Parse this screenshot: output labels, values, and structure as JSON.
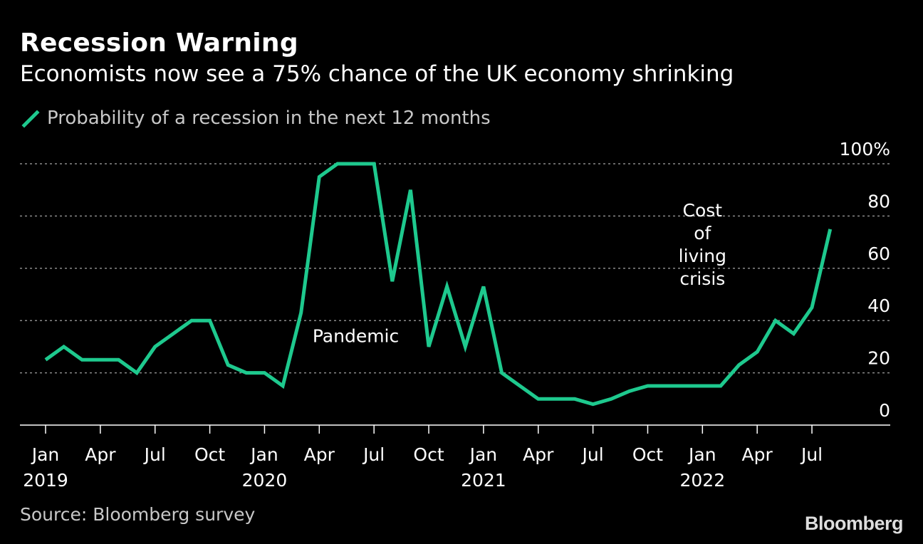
{
  "title": "Recession Warning",
  "subtitle": "Economists now see a 75% chance of the UK economy shrinking",
  "legend": {
    "label": "Probability of a recession in the next 12 months",
    "color": "#1ec98e"
  },
  "source": "Source: Bloomberg survey",
  "brand": "Bloomberg",
  "chart_data": {
    "type": "line",
    "title": "Recession Warning",
    "subtitle": "Economists now see a 75% chance of the UK economy shrinking",
    "ylim": [
      0,
      100
    ],
    "yticks": [
      {
        "value": 100,
        "label": "100%"
      },
      {
        "value": 80,
        "label": "80"
      },
      {
        "value": 60,
        "label": "60"
      },
      {
        "value": 40,
        "label": "40"
      },
      {
        "value": 20,
        "label": "20"
      },
      {
        "value": 0,
        "label": "0"
      }
    ],
    "xlim": [
      "2018-12",
      "2022-12"
    ],
    "xticks": [
      {
        "date": "2019-01",
        "label": "Jan",
        "year": "2019"
      },
      {
        "date": "2019-04",
        "label": "Apr",
        "year": ""
      },
      {
        "date": "2019-07",
        "label": "Jul",
        "year": ""
      },
      {
        "date": "2019-10",
        "label": "Oct",
        "year": ""
      },
      {
        "date": "2020-01",
        "label": "Jan",
        "year": "2020"
      },
      {
        "date": "2020-04",
        "label": "Apr",
        "year": ""
      },
      {
        "date": "2020-07",
        "label": "Jul",
        "year": ""
      },
      {
        "date": "2020-10",
        "label": "Oct",
        "year": ""
      },
      {
        "date": "2021-01",
        "label": "Jan",
        "year": "2021"
      },
      {
        "date": "2021-04",
        "label": "Apr",
        "year": ""
      },
      {
        "date": "2021-07",
        "label": "Jul",
        "year": ""
      },
      {
        "date": "2021-10",
        "label": "Oct",
        "year": ""
      },
      {
        "date": "2022-01",
        "label": "Jan",
        "year": "2022"
      },
      {
        "date": "2022-04",
        "label": "Apr",
        "year": ""
      },
      {
        "date": "2022-07",
        "label": "Jul",
        "year": ""
      }
    ],
    "grid": true,
    "legend_position": "top-left",
    "series": [
      {
        "name": "Probability of a recession in the next 12 months",
        "color": "#1ec98e",
        "x": [
          "2019-01",
          "2019-02",
          "2019-03",
          "2019-04",
          "2019-05",
          "2019-06",
          "2019-07",
          "2019-08",
          "2019-09",
          "2019-10",
          "2019-11",
          "2019-12",
          "2020-01",
          "2020-02",
          "2020-03",
          "2020-04",
          "2020-05",
          "2020-06",
          "2020-07",
          "2020-08",
          "2020-09",
          "2020-10",
          "2020-11",
          "2020-12",
          "2021-01",
          "2021-02",
          "2021-03",
          "2021-04",
          "2021-05",
          "2021-06",
          "2021-07",
          "2021-08",
          "2021-09",
          "2021-10",
          "2021-11",
          "2021-12",
          "2022-01",
          "2022-02",
          "2022-03",
          "2022-04",
          "2022-05",
          "2022-06",
          "2022-07",
          "2022-08"
        ],
        "values": [
          25,
          30,
          25,
          25,
          25,
          20,
          30,
          35,
          40,
          40,
          23,
          20,
          20,
          15,
          43,
          95,
          100,
          100,
          100,
          55,
          90,
          30,
          53,
          30,
          53,
          20,
          15,
          10,
          10,
          10,
          8,
          10,
          13,
          15,
          15,
          15,
          15,
          15,
          23,
          28,
          40,
          35,
          45,
          75
        ]
      }
    ],
    "annotations": [
      {
        "text": "Pandemic",
        "date": "2020-06",
        "value": 35
      },
      {
        "text": "Cost of living crisis",
        "lines": [
          "Cost",
          "of",
          "living",
          "crisis"
        ],
        "date": "2022-01",
        "value": 70
      }
    ]
  }
}
